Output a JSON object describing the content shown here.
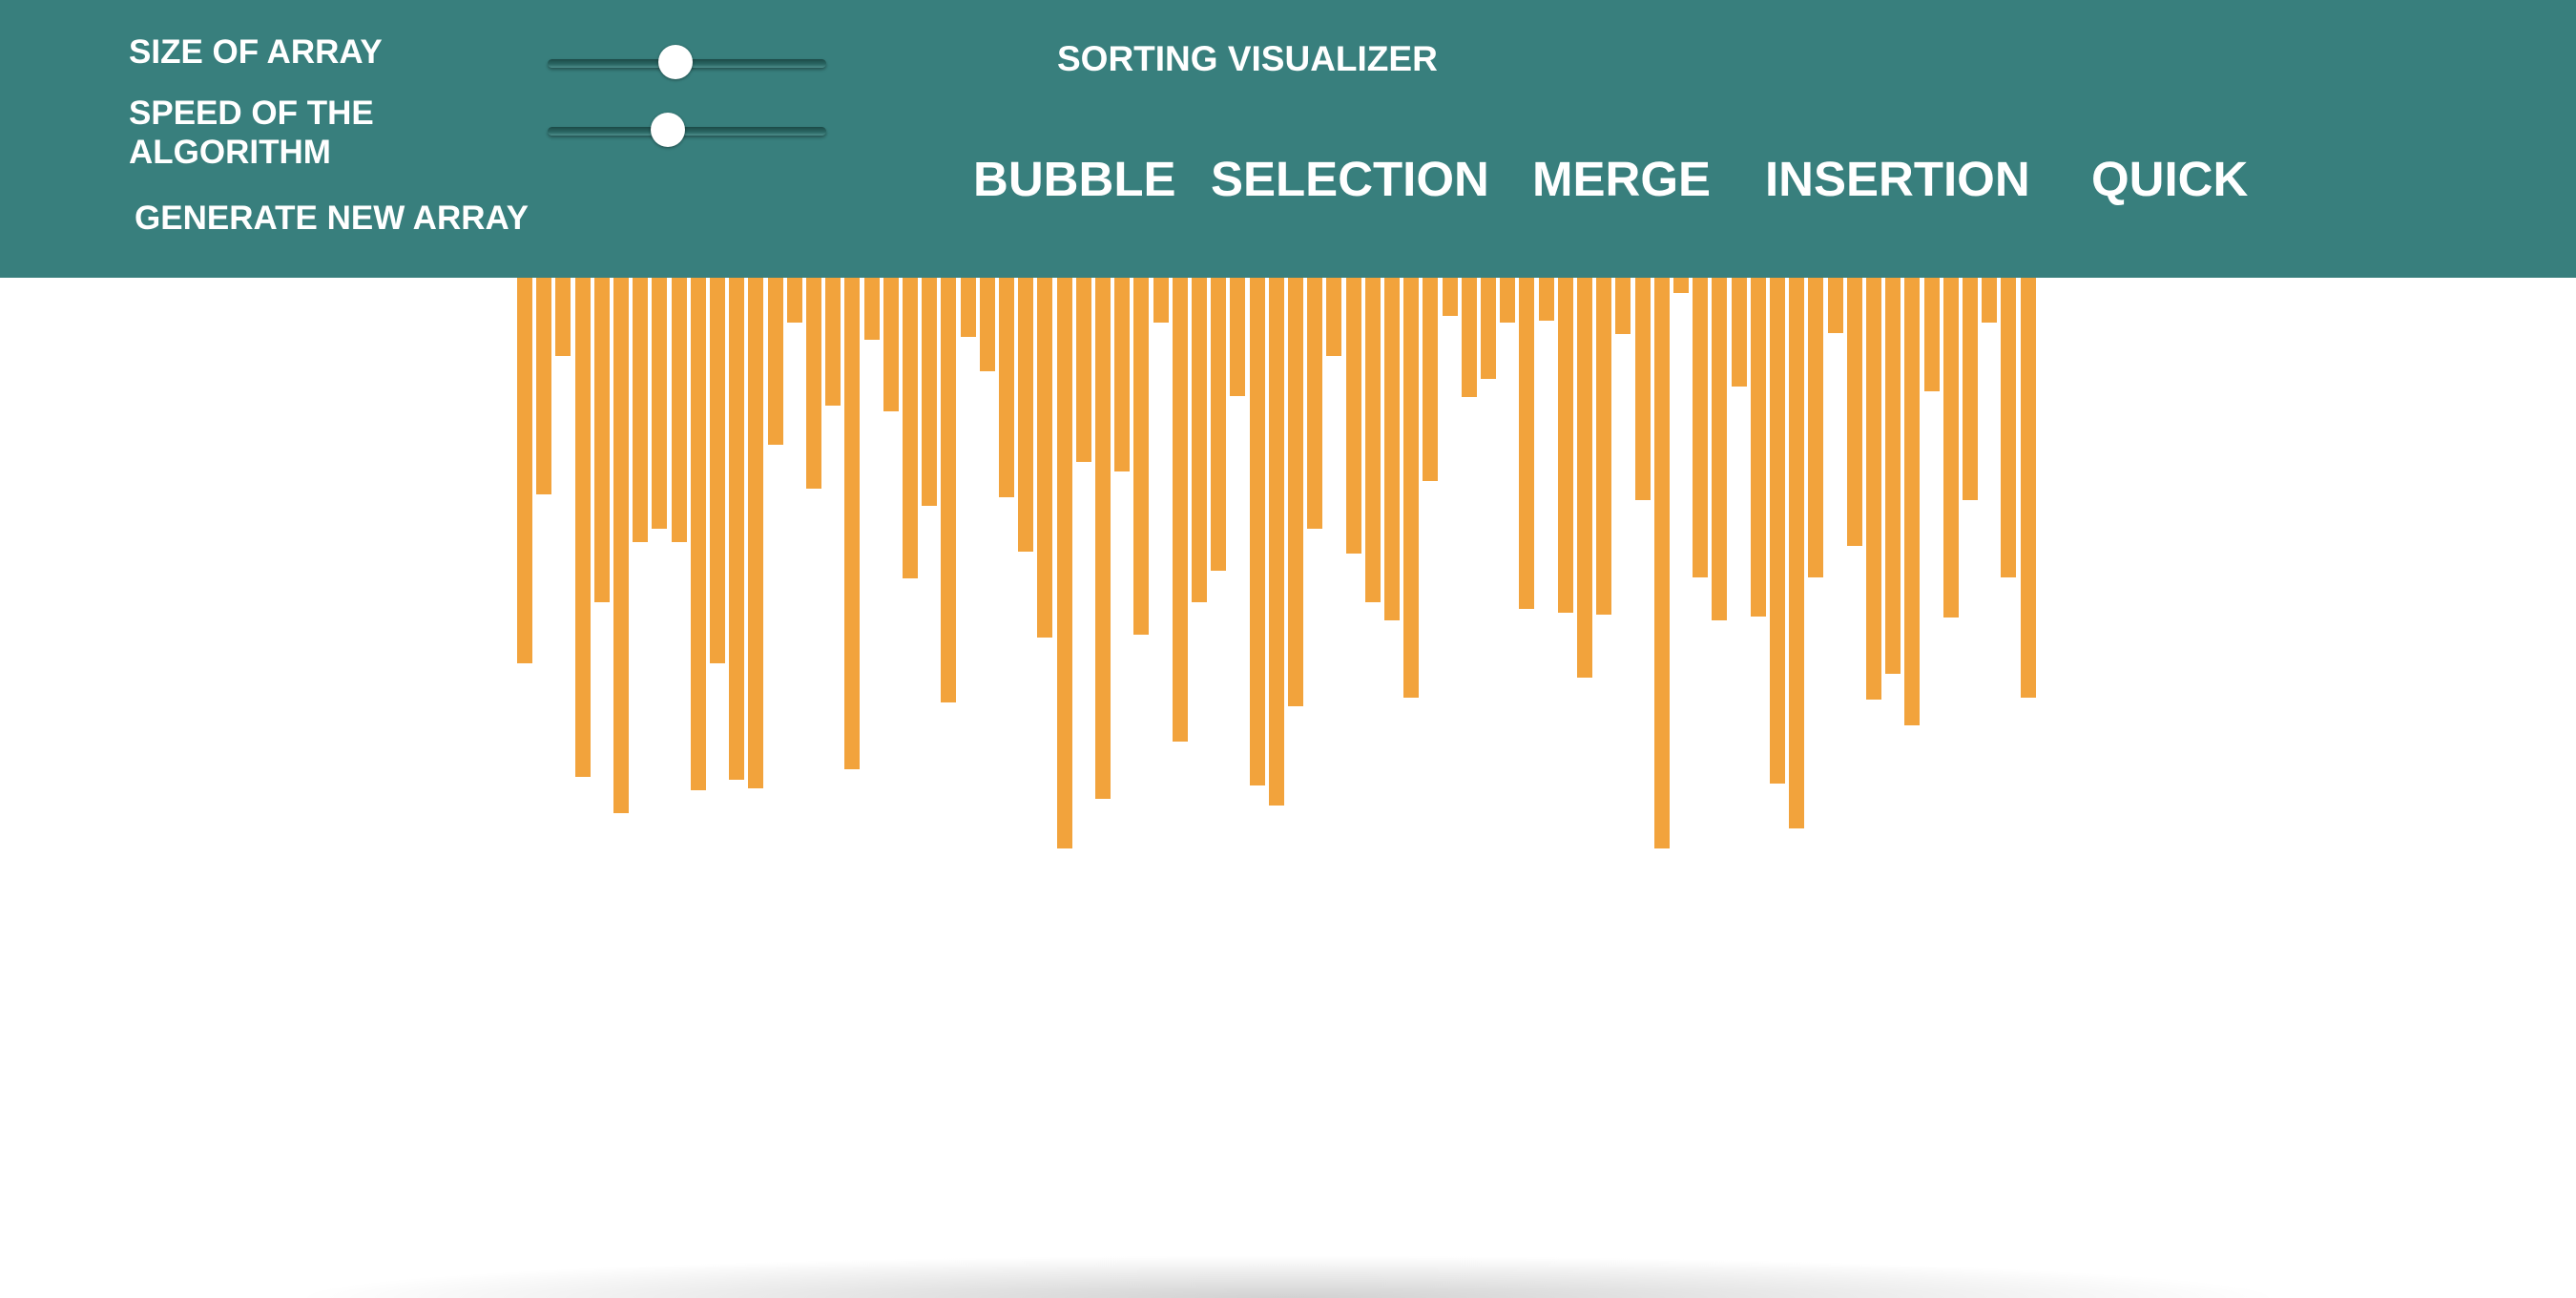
{
  "controls": {
    "size_label": "SIZE OF ARRAY",
    "speed_label": "SPEED OF THE ALGORITHM",
    "generate_label": "GENERATE NEW ARRAY",
    "size_slider_value": 0.46,
    "speed_slider_value": 0.43
  },
  "app": {
    "title": "SORTING VISUALIZER"
  },
  "algorithms": {
    "bubble": "BUBBLE",
    "selection": "SELECTION",
    "merge": "MERGE",
    "insertion": "INSERTION",
    "quick": "QUICK"
  },
  "colors": {
    "header_bg": "#387f7d",
    "bar": "#f2a33c",
    "text": "#ffffff",
    "page_bg": "#ffffff"
  },
  "array": {
    "values": [
      404,
      227,
      82,
      523,
      340,
      561,
      277,
      263,
      277,
      537,
      404,
      526,
      535,
      175,
      47,
      221,
      134,
      515,
      65,
      140,
      315,
      239,
      445,
      62,
      98,
      230,
      287,
      377,
      598,
      193,
      546,
      203,
      374,
      47,
      486,
      340,
      307,
      124,
      532,
      553,
      449,
      263,
      82,
      289,
      340,
      359,
      440,
      213,
      40,
      125,
      106,
      47,
      347,
      45,
      351,
      419,
      353,
      59,
      233,
      598,
      16,
      314,
      359,
      114,
      355,
      530,
      577,
      314,
      58,
      281,
      442,
      415,
      469,
      119,
      356,
      233,
      47,
      314,
      440
    ]
  }
}
